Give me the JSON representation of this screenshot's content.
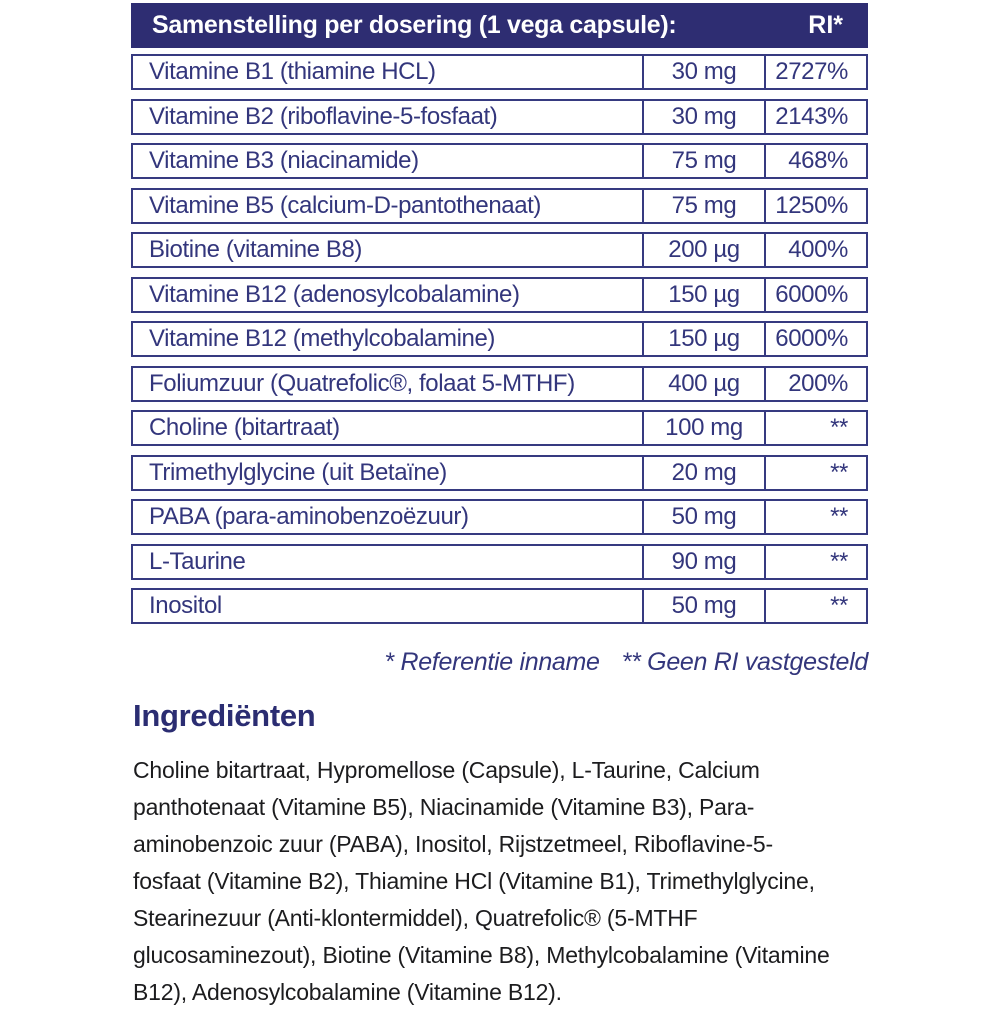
{
  "table": {
    "header": {
      "title": "Samenstelling per dosering (1 vega capsule):",
      "ri_label": "RI*"
    },
    "rows": [
      {
        "name": "Vitamine B1 (thiamine HCL)",
        "amount": "30 mg",
        "ri": "2727%"
      },
      {
        "name": "Vitamine B2 (riboflavine-5-fosfaat)",
        "amount": "30 mg",
        "ri": "2143%"
      },
      {
        "name": "Vitamine B3 (niacinamide)",
        "amount": "75 mg",
        "ri": "468%"
      },
      {
        "name": "Vitamine B5 (calcium-D-pantothenaat)",
        "amount": "75 mg",
        "ri": "1250%"
      },
      {
        "name": "Biotine (vitamine B8)",
        "amount": "200 µg",
        "ri": "400%"
      },
      {
        "name": "Vitamine B12 (adenosylcobalamine)",
        "amount": "150 µg",
        "ri": "6000%"
      },
      {
        "name": "Vitamine B12 (methylcobalamine)",
        "amount": "150 µg",
        "ri": "6000%"
      },
      {
        "name": "Foliumzuur (Quatrefolic®, folaat 5-MTHF)",
        "amount": "400 µg",
        "ri": "200%"
      },
      {
        "name": "Choline (bitartraat)",
        "amount": "100 mg",
        "ri": "**"
      },
      {
        "name": "Trimethylglycine (uit Betaïne)",
        "amount": "20 mg",
        "ri": "**"
      },
      {
        "name": "PABA (para-aminobenzoëzuur)",
        "amount": "50 mg",
        "ri": "**"
      },
      {
        "name": "L-Taurine",
        "amount": "90 mg",
        "ri": "**"
      },
      {
        "name": "Inositol",
        "amount": "50 mg",
        "ri": "**"
      }
    ]
  },
  "footnotes": {
    "reference": "* Referentie inname",
    "no_ri": "** Geen RI vastgesteld"
  },
  "ingredients": {
    "heading": "Ingrediënten",
    "lines": [
      "Choline bitartraat, Hypromellose (Capsule), L-Taurine, Calcium",
      "panthotenaat (Vitamine B5), Niacinamide (Vitamine B3), Para-",
      "aminobenzoic zuur (PABA), Inositol, Rijstzetmeel, Riboflavine-5-",
      "fosfaat (Vitamine B2), Thiamine HCl (Vitamine B1), Trimethylglycine,",
      "Stearinezuur (Anti-klontermiddel), Quatrefolic® (5-MTHF",
      "glucosaminezout), Biotine (Vitamine B8), Methylcobalamine (Vitamine",
      "B12), Adenosylcobalamine (Vitamine B12)."
    ]
  },
  "colors": {
    "navy_header_bg": "#2e2d72",
    "table_border": "#363a80",
    "table_text": "#33367c",
    "heading_text": "#2b2d72",
    "body_text": "#1c1c1e"
  }
}
